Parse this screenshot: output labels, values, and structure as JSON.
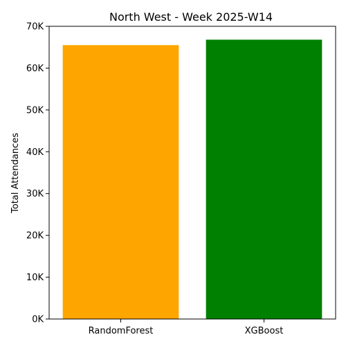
{
  "chart_data": {
    "type": "bar",
    "title": "North West - Week 2025-W14",
    "xlabel": "",
    "ylabel": "Total Attendances",
    "categories": [
      "RandomForest",
      "XGBoost"
    ],
    "values": [
      65500,
      66800
    ],
    "colors": [
      "#ffa500",
      "#008000"
    ],
    "ylim": [
      0,
      70000
    ],
    "yticks": [
      0,
      10000,
      20000,
      30000,
      40000,
      50000,
      60000,
      70000
    ],
    "ytick_labels": [
      "0K",
      "10K",
      "20K",
      "30K",
      "40K",
      "50K",
      "60K",
      "70K"
    ],
    "grid": false,
    "legend": "none"
  }
}
